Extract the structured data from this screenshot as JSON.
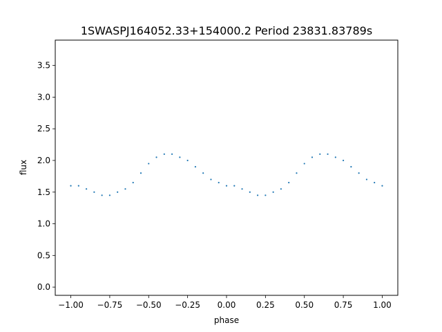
{
  "chart_data": {
    "type": "scatter",
    "title": "1SWASPJ164052.33+154000.2 Period 23831.83789s",
    "xlabel": "phase",
    "ylabel": "flux",
    "xlim": [
      -1.1,
      1.1
    ],
    "ylim": [
      -0.13,
      3.9
    ],
    "xticks": [
      -1.0,
      -0.75,
      -0.5,
      -0.25,
      0.0,
      0.25,
      0.5,
      0.75,
      1.0
    ],
    "xtick_labels": [
      "−1.00",
      "−0.75",
      "−0.50",
      "−0.25",
      "0.00",
      "0.25",
      "0.50",
      "0.75",
      "1.00"
    ],
    "yticks": [
      0.0,
      0.5,
      1.0,
      1.5,
      2.0,
      2.5,
      3.0,
      3.5
    ],
    "ytick_labels": [
      "0.0",
      "0.5",
      "1.0",
      "1.5",
      "2.0",
      "2.5",
      "3.0",
      "3.5"
    ],
    "grid": false,
    "marker_color": "#1f77b4",
    "series": [
      {
        "x": [
          -1.0,
          -0.95,
          -0.9,
          -0.85,
          -0.8,
          -0.75,
          -0.7,
          -0.65,
          -0.6,
          -0.55,
          -0.5,
          -0.45,
          -0.4,
          -0.35,
          -0.3,
          -0.25,
          -0.2,
          -0.15,
          -0.1,
          -0.05,
          0.0,
          0.05,
          0.1,
          0.15,
          0.2,
          0.25,
          0.3,
          0.35,
          0.4,
          0.45,
          0.5,
          0.55,
          0.6,
          0.65,
          0.7,
          0.75,
          0.8,
          0.85,
          0.9,
          0.95,
          1.0
        ],
        "y": [
          1.6,
          1.6,
          1.55,
          1.5,
          1.45,
          1.45,
          1.5,
          1.55,
          1.65,
          1.8,
          1.95,
          2.05,
          2.1,
          2.1,
          2.05,
          2.0,
          1.9,
          1.8,
          1.7,
          1.65,
          1.6,
          1.6,
          1.55,
          1.5,
          1.45,
          1.45,
          1.5,
          1.55,
          1.65,
          1.8,
          1.95,
          2.05,
          2.1,
          2.1,
          2.05,
          2.0,
          1.9,
          1.8,
          1.7,
          1.65,
          1.6
        ]
      }
    ]
  }
}
